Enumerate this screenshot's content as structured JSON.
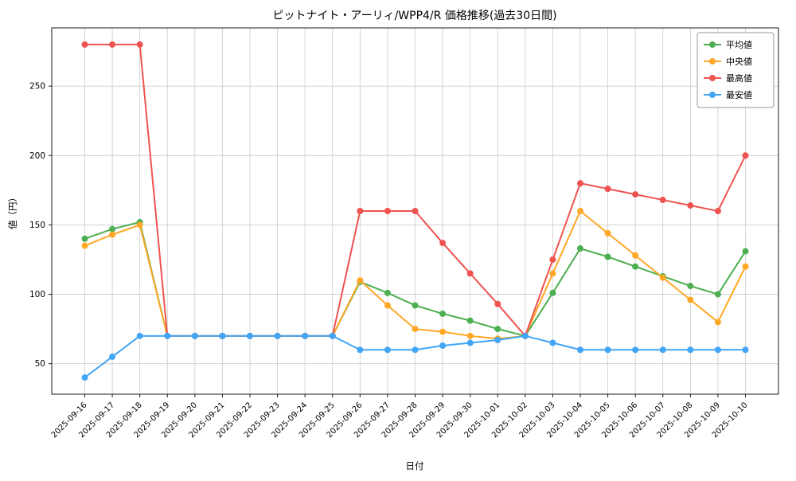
{
  "chart_data": {
    "type": "line",
    "title": "ピットナイト・アーリィ/WPP4/R 価格推移(過去30日間)",
    "xlabel": "日付",
    "ylabel": "値（円）",
    "ylim": [
      28,
      292
    ],
    "yticks": [
      50,
      100,
      150,
      200,
      250
    ],
    "grid": true,
    "legend_position": "upper right",
    "categories": [
      "2025-09-16",
      "2025-09-17",
      "2025-09-18",
      "2025-09-19",
      "2025-09-20",
      "2025-09-21",
      "2025-09-22",
      "2025-09-23",
      "2025-09-24",
      "2025-09-25",
      "2025-09-26",
      "2025-09-27",
      "2025-09-28",
      "2025-09-29",
      "2025-09-30",
      "2025-10-01",
      "2025-10-02",
      "2025-10-03",
      "2025-10-04",
      "2025-10-05",
      "2025-10-06",
      "2025-10-07",
      "2025-10-08",
      "2025-10-09",
      "2025-10-10"
    ],
    "series": [
      {
        "name": "平均値",
        "color": "#4caf50",
        "values": [
          140,
          147,
          152,
          70,
          70,
          70,
          70,
          70,
          70,
          70,
          109,
          101,
          92,
          86,
          81,
          75,
          70,
          101,
          133,
          127,
          120,
          113,
          106,
          100,
          131
        ]
      },
      {
        "name": "中央値",
        "color": "#ffa726",
        "values": [
          135,
          143,
          150,
          70,
          70,
          70,
          70,
          70,
          70,
          70,
          110,
          92,
          75,
          73,
          70,
          68,
          70,
          115,
          160,
          144,
          128,
          112,
          96,
          80,
          120
        ]
      },
      {
        "name": "最高値",
        "color": "#ef5350",
        "values": [
          280,
          280,
          280,
          70,
          70,
          70,
          70,
          70,
          70,
          70,
          160,
          160,
          160,
          137,
          115,
          93,
          70,
          125,
          180,
          176,
          172,
          168,
          164,
          160,
          200
        ]
      },
      {
        "name": "最安値",
        "color": "#42a5f5",
        "values": [
          40,
          55,
          70,
          70,
          70,
          70,
          70,
          70,
          70,
          70,
          60,
          60,
          60,
          63,
          65,
          67,
          70,
          65,
          60,
          60,
          60,
          60,
          60,
          60,
          60
        ]
      }
    ]
  }
}
